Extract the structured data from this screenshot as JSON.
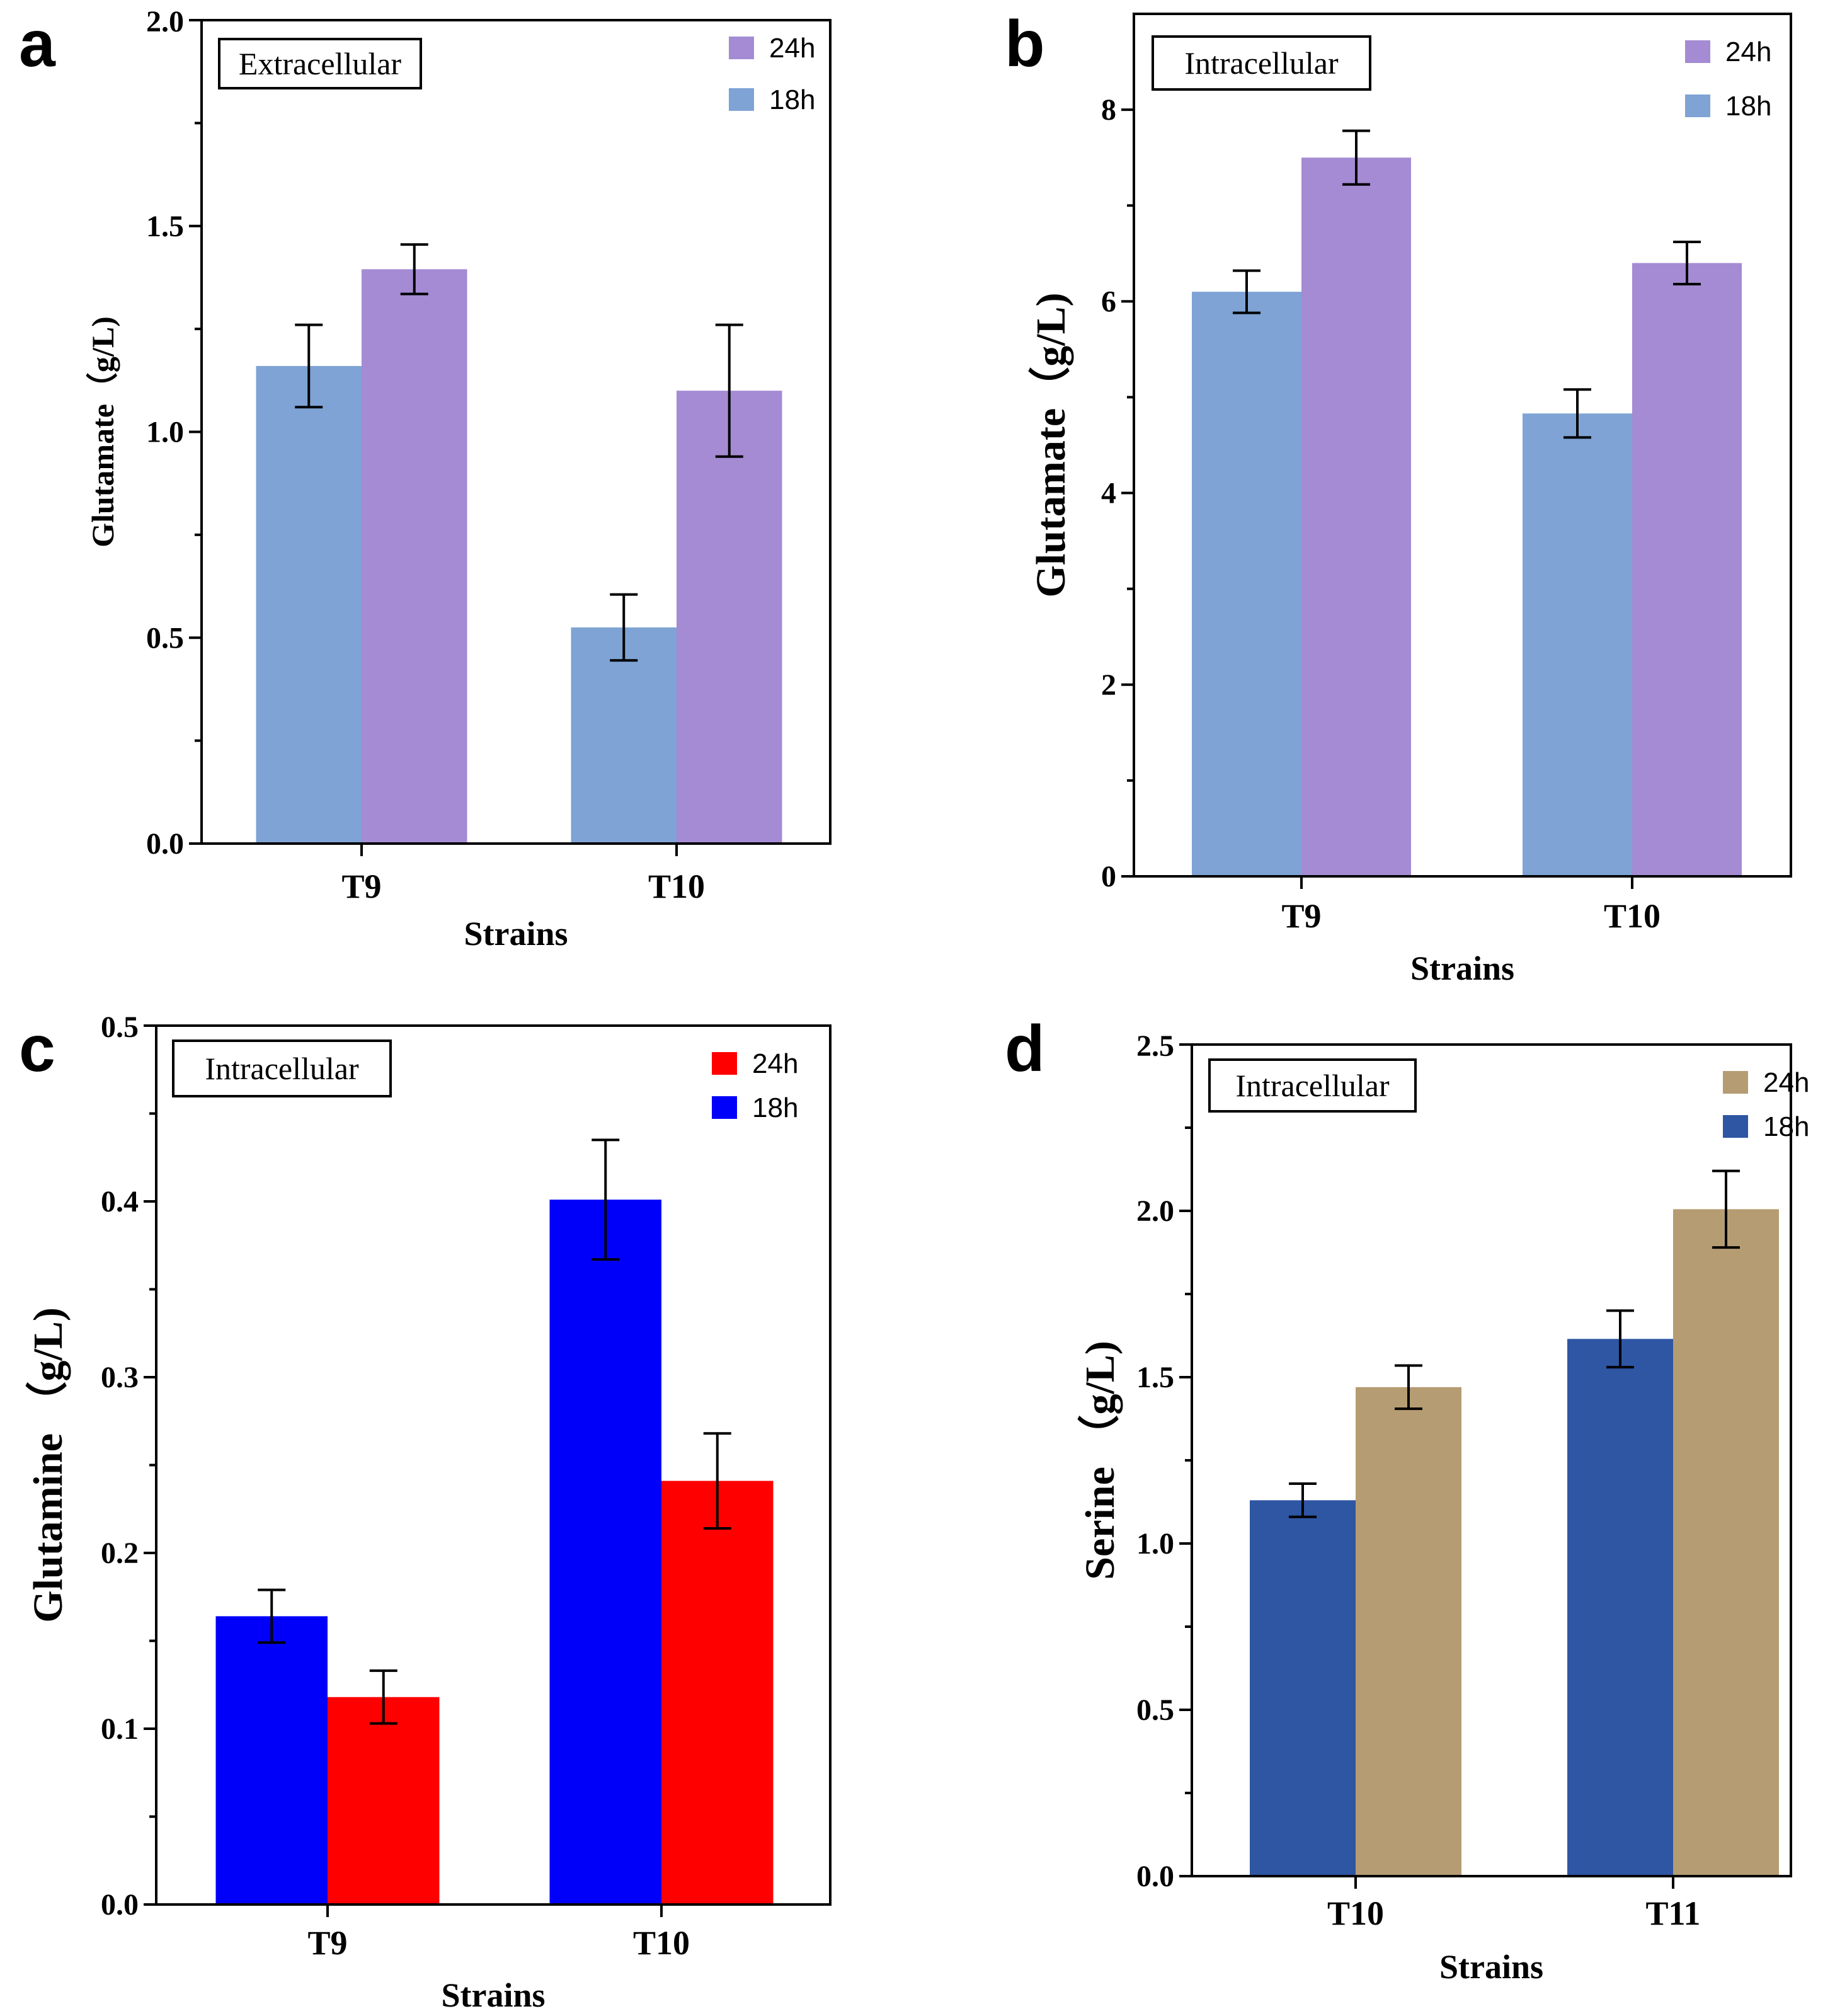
{
  "chart_data": [
    {
      "type": "bar",
      "panel": "a",
      "annotation": "Extracellular",
      "categories": [
        "T9",
        "T10"
      ],
      "series": [
        {
          "name": "18h",
          "color": "#7ea3d4",
          "values": [
            1.16,
            0.525
          ],
          "errors": [
            0.1,
            0.08
          ]
        },
        {
          "name": "24h",
          "color": "#a48bd3",
          "values": [
            1.395,
            1.1
          ],
          "errors": [
            0.06,
            0.16
          ]
        }
      ],
      "legend_order": [
        "24h",
        "18h"
      ],
      "xlabel": "Strains",
      "ylabel": "Glutamate（g/L)",
      "ylim": [
        0,
        2.0
      ],
      "yticks": [
        0,
        0.5,
        1.0,
        1.5,
        2.0
      ],
      "ytick_labels": [
        "0.0",
        "0.5",
        "1.0",
        "1.5",
        "2.0"
      ],
      "minor_ticks": true
    },
    {
      "type": "bar",
      "panel": "b",
      "annotation": "Intracellular",
      "categories": [
        "T9",
        "T10"
      ],
      "series": [
        {
          "name": "18h",
          "color": "#7ea3d4",
          "values": [
            6.1,
            4.83
          ],
          "errors": [
            0.22,
            0.25
          ]
        },
        {
          "name": "24h",
          "color": "#a48bd3",
          "values": [
            7.5,
            6.4
          ],
          "errors": [
            0.28,
            0.22
          ]
        }
      ],
      "legend_order": [
        "24h",
        "18h"
      ],
      "xlabel": "Strains",
      "ylabel": "Glutamate（g/L)",
      "ylim": [
        0,
        9.0
      ],
      "yticks": [
        0,
        2,
        4,
        6,
        8
      ],
      "ytick_labels": [
        "0",
        "2",
        "4",
        "6",
        "8"
      ],
      "minor_ticks": true
    },
    {
      "type": "bar",
      "panel": "c",
      "annotation": "Intracellular",
      "categories": [
        "T9",
        "T10"
      ],
      "series": [
        {
          "name": "18h",
          "color": "#0000fa",
          "values": [
            0.164,
            0.401
          ],
          "errors": [
            0.015,
            0.034
          ]
        },
        {
          "name": "24h",
          "color": "#ff0000",
          "values": [
            0.118,
            0.241
          ],
          "errors": [
            0.015,
            0.027
          ]
        }
      ],
      "legend_order": [
        "24h",
        "18h"
      ],
      "xlabel": "Strains",
      "ylabel": "Glutamine （g/L)",
      "ylim": [
        0,
        0.5
      ],
      "yticks": [
        0,
        0.1,
        0.2,
        0.3,
        0.4,
        0.5
      ],
      "ytick_labels": [
        "0.0",
        "0.1",
        "0.2",
        "0.3",
        "0.4",
        "0.5"
      ],
      "minor_ticks": true
    },
    {
      "type": "bar",
      "panel": "d",
      "annotation": "Intracellular",
      "categories": [
        "T10",
        "T11"
      ],
      "series": [
        {
          "name": "18h",
          "color": "#2e56a3",
          "values": [
            1.13,
            1.615
          ],
          "errors": [
            0.05,
            0.085
          ]
        },
        {
          "name": "24h",
          "color": "#b59c72",
          "values": [
            1.47,
            2.005
          ],
          "errors": [
            0.065,
            0.115
          ]
        }
      ],
      "legend_order": [
        "24h",
        "18h"
      ],
      "xlabel": "Strains",
      "ylabel": "Serine （g/L)",
      "ylim": [
        0,
        2.5
      ],
      "yticks": [
        0,
        0.5,
        1.0,
        1.5,
        2.0,
        2.5
      ],
      "ytick_labels": [
        "0.0",
        "0.5",
        "1.0",
        "1.5",
        "2.0",
        "2.5"
      ],
      "minor_ticks": true
    }
  ]
}
